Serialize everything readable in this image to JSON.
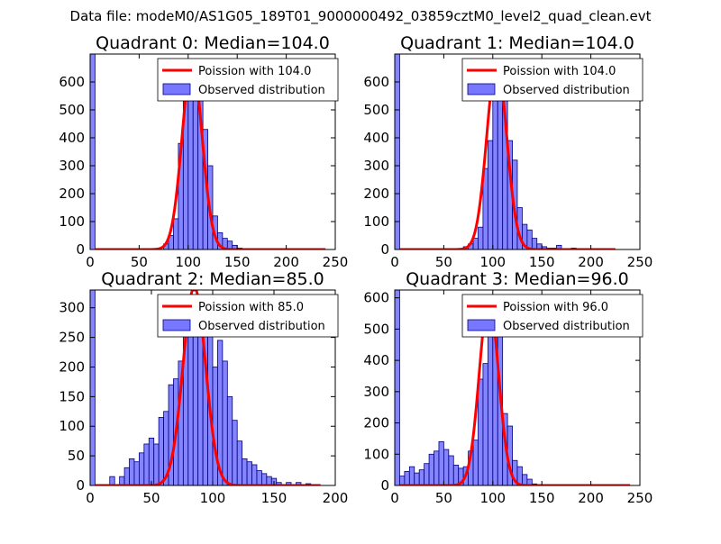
{
  "suptitle": "Data file: modeM0/AS1G05_189T01_9000000492_03859cztM0_level2_quad_clean.evt",
  "colors": {
    "hist_fill": "#7777ff",
    "hist_edge": "#000080",
    "line": "#ff0000"
  },
  "chart_data": [
    {
      "type": "bar",
      "title": "Quadrant 0: Median=104.0",
      "xlim": [
        0,
        250
      ],
      "ylim": [
        0,
        700
      ],
      "xticks": [
        0,
        50,
        100,
        150,
        200,
        250
      ],
      "yticks": [
        0,
        100,
        200,
        300,
        400,
        500,
        600
      ],
      "bin_width": 5,
      "bins": [
        [
          0,
          700
        ],
        [
          75,
          20
        ],
        [
          80,
          50
        ],
        [
          85,
          110
        ],
        [
          90,
          380
        ],
        [
          95,
          570
        ],
        [
          100,
          600
        ],
        [
          105,
          570
        ],
        [
          110,
          580
        ],
        [
          115,
          430
        ],
        [
          120,
          300
        ],
        [
          125,
          120
        ],
        [
          130,
          60
        ],
        [
          135,
          40
        ],
        [
          140,
          30
        ],
        [
          145,
          15
        ],
        [
          150,
          5
        ],
        [
          155,
          3
        ],
        [
          160,
          2
        ],
        [
          170,
          2
        ]
      ],
      "line": {
        "label": "Poission with 104.0",
        "mean": 104.0,
        "peak": 670,
        "start": 5,
        "end": 240
      },
      "hist_label": "Observed distribution"
    },
    {
      "type": "bar",
      "title": "Quadrant 1: Median=104.0",
      "xlim": [
        0,
        250
      ],
      "ylim": [
        0,
        700
      ],
      "xticks": [
        0,
        50,
        100,
        150,
        200,
        250
      ],
      "yticks": [
        0,
        100,
        200,
        300,
        400,
        500,
        600
      ],
      "bin_width": 5,
      "bins": [
        [
          0,
          700
        ],
        [
          70,
          10
        ],
        [
          75,
          20
        ],
        [
          80,
          40
        ],
        [
          85,
          80
        ],
        [
          90,
          290
        ],
        [
          95,
          390
        ],
        [
          100,
          560
        ],
        [
          105,
          580
        ],
        [
          110,
          580
        ],
        [
          115,
          390
        ],
        [
          120,
          320
        ],
        [
          125,
          150
        ],
        [
          130,
          90
        ],
        [
          135,
          70
        ],
        [
          140,
          40
        ],
        [
          145,
          20
        ],
        [
          150,
          10
        ],
        [
          155,
          5
        ],
        [
          160,
          5
        ],
        [
          165,
          15
        ],
        [
          180,
          5
        ]
      ],
      "line": {
        "label": "Poission with 104.0",
        "mean": 104.0,
        "peak": 670,
        "start": 5,
        "end": 225
      },
      "hist_label": "Observed distribution"
    },
    {
      "type": "bar",
      "title": "Quadrant 2: Median=85.0",
      "xlim": [
        0,
        200
      ],
      "ylim": [
        0,
        330
      ],
      "xticks": [
        0,
        50,
        100,
        150,
        200
      ],
      "yticks": [
        0,
        50,
        100,
        150,
        200,
        250,
        300
      ],
      "bin_width": 4,
      "bins": [
        [
          0,
          330
        ],
        [
          16,
          15
        ],
        [
          24,
          15
        ],
        [
          28,
          30
        ],
        [
          32,
          45
        ],
        [
          36,
          40
        ],
        [
          40,
          55
        ],
        [
          44,
          70
        ],
        [
          48,
          80
        ],
        [
          52,
          70
        ],
        [
          56,
          115
        ],
        [
          60,
          125
        ],
        [
          64,
          170
        ],
        [
          68,
          180
        ],
        [
          72,
          210
        ],
        [
          76,
          260
        ],
        [
          80,
          305
        ],
        [
          84,
          280
        ],
        [
          88,
          280
        ],
        [
          92,
          285
        ],
        [
          96,
          260
        ],
        [
          100,
          200
        ],
        [
          104,
          245
        ],
        [
          108,
          210
        ],
        [
          112,
          150
        ],
        [
          116,
          110
        ],
        [
          120,
          75
        ],
        [
          124,
          45
        ],
        [
          128,
          40
        ],
        [
          132,
          35
        ],
        [
          136,
          25
        ],
        [
          140,
          20
        ],
        [
          144,
          15
        ],
        [
          148,
          12
        ],
        [
          152,
          5
        ],
        [
          160,
          5
        ],
        [
          168,
          5
        ],
        [
          176,
          3
        ]
      ],
      "line": {
        "label": "Poission with 85.0",
        "mean": 85.0,
        "peak": 335,
        "start": 4,
        "end": 188
      },
      "hist_label": "Observed distribution"
    },
    {
      "type": "bar",
      "title": "Quadrant 3: Median=96.0",
      "xlim": [
        0,
        250
      ],
      "ylim": [
        0,
        625
      ],
      "xticks": [
        0,
        50,
        100,
        150,
        200,
        250
      ],
      "yticks": [
        0,
        100,
        200,
        300,
        400,
        500,
        600
      ],
      "bin_width": 5,
      "bins": [
        [
          0,
          625
        ],
        [
          5,
          30
        ],
        [
          10,
          45
        ],
        [
          15,
          60
        ],
        [
          20,
          40
        ],
        [
          25,
          50
        ],
        [
          30,
          70
        ],
        [
          35,
          100
        ],
        [
          40,
          110
        ],
        [
          45,
          140
        ],
        [
          50,
          115
        ],
        [
          55,
          95
        ],
        [
          60,
          65
        ],
        [
          65,
          55
        ],
        [
          70,
          60
        ],
        [
          75,
          110
        ],
        [
          80,
          145
        ],
        [
          85,
          340
        ],
        [
          90,
          390
        ],
        [
          95,
          595
        ],
        [
          100,
          590
        ],
        [
          105,
          550
        ],
        [
          110,
          230
        ],
        [
          115,
          190
        ],
        [
          120,
          80
        ],
        [
          125,
          60
        ],
        [
          130,
          35
        ],
        [
          135,
          20
        ],
        [
          140,
          5
        ]
      ],
      "line": {
        "label": "Poission with 96.0",
        "mean": 96.0,
        "peak": 595,
        "start": 5,
        "end": 240
      },
      "hist_label": "Observed distribution"
    }
  ]
}
